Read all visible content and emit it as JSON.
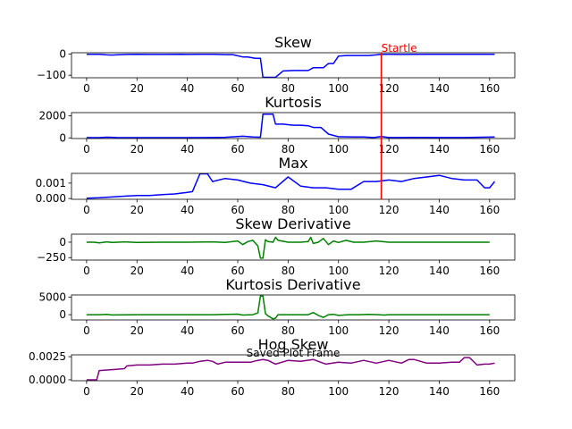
{
  "figure_label": "Saved Plot Frame",
  "chart_data": [
    {
      "type": "line",
      "title": "Skew",
      "color": "#0000ff",
      "xlim": [
        -6,
        170
      ],
      "ylim": [
        -112,
        6
      ],
      "xticks": [
        0,
        20,
        40,
        60,
        80,
        100,
        120,
        140,
        160
      ],
      "yticks": [
        0,
        -100
      ],
      "ytick_labels": [
        "0",
        "−100"
      ],
      "series": [
        {
          "x": [
            0,
            5,
            8,
            10,
            16,
            20,
            25,
            30,
            38,
            40,
            45,
            50,
            52,
            55,
            58,
            62,
            64,
            67,
            69,
            70,
            73,
            75,
            78,
            82,
            85,
            88,
            90,
            94,
            96,
            98,
            100,
            103,
            106,
            110,
            112,
            115,
            117,
            120,
            125,
            130,
            140,
            150,
            162
          ],
          "y": [
            -1,
            -1,
            -4,
            -5,
            -2,
            -1,
            -2,
            -2,
            -1,
            -2,
            -1,
            -1,
            -2,
            -3,
            -3,
            -14,
            -14,
            -20,
            -20,
            -110,
            -110,
            -110,
            -80,
            -78,
            -78,
            -78,
            -65,
            -65,
            -45,
            -45,
            -10,
            -7,
            -7,
            -7,
            -7,
            -4,
            -1,
            -1,
            -2,
            -1,
            -1,
            -1,
            -1
          ]
        }
      ],
      "annotations": [
        {
          "type": "vline",
          "x": 117,
          "color": "#ff0000",
          "text": "Startle"
        }
      ]
    },
    {
      "type": "line",
      "title": "Kurtosis",
      "color": "#0000ff",
      "xlim": [
        -6,
        170
      ],
      "ylim": [
        -60,
        2300
      ],
      "xticks": [
        0,
        20,
        40,
        60,
        80,
        100,
        120,
        140,
        160
      ],
      "yticks": [
        0,
        2000
      ],
      "ytick_labels": [
        "0",
        "2000"
      ],
      "series": [
        {
          "x": [
            0,
            5,
            8,
            12,
            20,
            30,
            40,
            50,
            55,
            60,
            62,
            66,
            69,
            70,
            74,
            75,
            78,
            82,
            85,
            88,
            90,
            93,
            96,
            100,
            106,
            110,
            114,
            117,
            120,
            125,
            130,
            140,
            150,
            160,
            162
          ],
          "y": [
            20,
            20,
            60,
            30,
            20,
            20,
            20,
            30,
            50,
            120,
            150,
            80,
            60,
            2150,
            2150,
            1250,
            1250,
            1150,
            1150,
            1100,
            950,
            950,
            350,
            100,
            80,
            80,
            30,
            130,
            30,
            30,
            40,
            30,
            30,
            70,
            90
          ]
        }
      ]
    },
    {
      "type": "line",
      "title": "Max",
      "color": "#0000ff",
      "xlim": [
        -6,
        170
      ],
      "ylim": [
        -5e-05,
        0.00163
      ],
      "xticks": [
        0,
        20,
        40,
        60,
        80,
        100,
        120,
        140,
        160
      ],
      "yticks": [
        0.001,
        0.0
      ],
      "ytick_labels": [
        "0.001",
        "0.000"
      ],
      "series": [
        {
          "x": [
            0,
            5,
            10,
            15,
            20,
            25,
            30,
            35,
            40,
            42,
            45,
            48,
            50,
            55,
            60,
            65,
            70,
            75,
            80,
            85,
            90,
            95,
            100,
            105,
            110,
            115,
            120,
            125,
            130,
            135,
            140,
            145,
            150,
            155,
            158,
            160,
            162
          ],
          "y": [
            2e-05,
            5e-05,
            0.0001,
            0.00015,
            0.0002,
            0.0002,
            0.00025,
            0.0003,
            0.0004,
            0.00045,
            0.0016,
            0.0016,
            0.0011,
            0.0013,
            0.0012,
            0.001,
            0.0009,
            0.0007,
            0.0014,
            0.0008,
            0.0007,
            0.0007,
            0.0006,
            0.0006,
            0.0011,
            0.0011,
            0.0012,
            0.0011,
            0.0013,
            0.0014,
            0.0015,
            0.0013,
            0.0012,
            0.0012,
            0.0007,
            0.0007,
            0.0011
          ]
        }
      ]
    },
    {
      "type": "line",
      "title": "Skew Derivative",
      "color": "#008000",
      "xlim": [
        -6,
        170
      ],
      "ylim": [
        -290,
        130
      ],
      "xticks": [
        0,
        20,
        40,
        60,
        80,
        100,
        120,
        140,
        160
      ],
      "yticks": [
        0,
        -250
      ],
      "ytick_labels": [
        "0",
        "−250"
      ],
      "series": [
        {
          "x": [
            0,
            3,
            5,
            8,
            10,
            15,
            20,
            30,
            40,
            50,
            55,
            60,
            62,
            64,
            66,
            68,
            69,
            70,
            71,
            72,
            74,
            75,
            76,
            80,
            85,
            88,
            89,
            90,
            92,
            94,
            96,
            98,
            100,
            103,
            106,
            110,
            115,
            120,
            130,
            140,
            150,
            160
          ],
          "y": [
            0,
            0,
            -10,
            5,
            -5,
            5,
            -5,
            0,
            0,
            5,
            -5,
            20,
            -40,
            10,
            30,
            -60,
            -260,
            -260,
            40,
            10,
            0,
            80,
            30,
            0,
            0,
            10,
            80,
            -20,
            0,
            60,
            -40,
            20,
            -5,
            30,
            0,
            0,
            20,
            0,
            0,
            0,
            0,
            0
          ]
        }
      ]
    },
    {
      "type": "line",
      "title": "Kurtosis Derivative",
      "color": "#008000",
      "xlim": [
        -6,
        170
      ],
      "ylim": [
        -1500,
        5600
      ],
      "xticks": [
        0,
        20,
        40,
        60,
        80,
        100,
        120,
        140,
        160
      ],
      "yticks": [
        5000,
        0
      ],
      "ytick_labels": [
        "5000",
        "0"
      ],
      "series": [
        {
          "x": [
            0,
            5,
            8,
            10,
            20,
            30,
            40,
            50,
            55,
            60,
            62,
            66,
            68,
            69,
            70,
            71,
            72,
            74,
            75,
            76,
            80,
            85,
            88,
            90,
            92,
            94,
            96,
            98,
            100,
            104,
            108,
            112,
            116,
            118,
            120,
            130,
            140,
            150,
            160
          ],
          "y": [
            0,
            0,
            100,
            -80,
            0,
            0,
            0,
            0,
            80,
            150,
            -100,
            0,
            500,
            5300,
            5300,
            300,
            -300,
            -1200,
            -1000,
            0,
            0,
            0,
            0,
            600,
            -200,
            -800,
            0,
            100,
            -200,
            0,
            0,
            100,
            0,
            -100,
            0,
            0,
            0,
            0,
            0
          ]
        }
      ]
    },
    {
      "type": "line",
      "title": "Hog Skew",
      "color": "#800080",
      "xlim": [
        -6,
        170
      ],
      "ylim": [
        -0.0001,
        0.0027
      ],
      "xticks": [
        0,
        20,
        40,
        60,
        80,
        100,
        120,
        140,
        160
      ],
      "yticks": [
        0.0025,
        0.0
      ],
      "ytick_labels": [
        "0.0025",
        "0.0000"
      ],
      "series": [
        {
          "x": [
            0,
            4,
            5,
            10,
            15,
            16,
            20,
            25,
            30,
            35,
            40,
            42,
            45,
            48,
            50,
            52,
            55,
            60,
            65,
            68,
            70,
            72,
            75,
            80,
            85,
            90,
            95,
            100,
            105,
            110,
            115,
            120,
            125,
            128,
            130,
            135,
            140,
            145,
            148,
            150,
            152,
            155,
            158,
            160,
            162
          ],
          "y": [
            0,
            0,
            0.001,
            0.0011,
            0.0012,
            0.0015,
            0.0016,
            0.0016,
            0.0017,
            0.0017,
            0.0018,
            0.0018,
            0.002,
            0.0021,
            0.002,
            0.0017,
            0.0019,
            0.0019,
            0.0019,
            0.0021,
            0.0022,
            0.0021,
            0.0017,
            0.0021,
            0.002,
            0.0022,
            0.0017,
            0.0019,
            0.0018,
            0.0021,
            0.0018,
            0.0021,
            0.0018,
            0.0022,
            0.0022,
            0.0018,
            0.0018,
            0.0019,
            0.0019,
            0.0024,
            0.0024,
            0.0016,
            0.0017,
            0.0017,
            0.0018
          ]
        }
      ]
    }
  ]
}
